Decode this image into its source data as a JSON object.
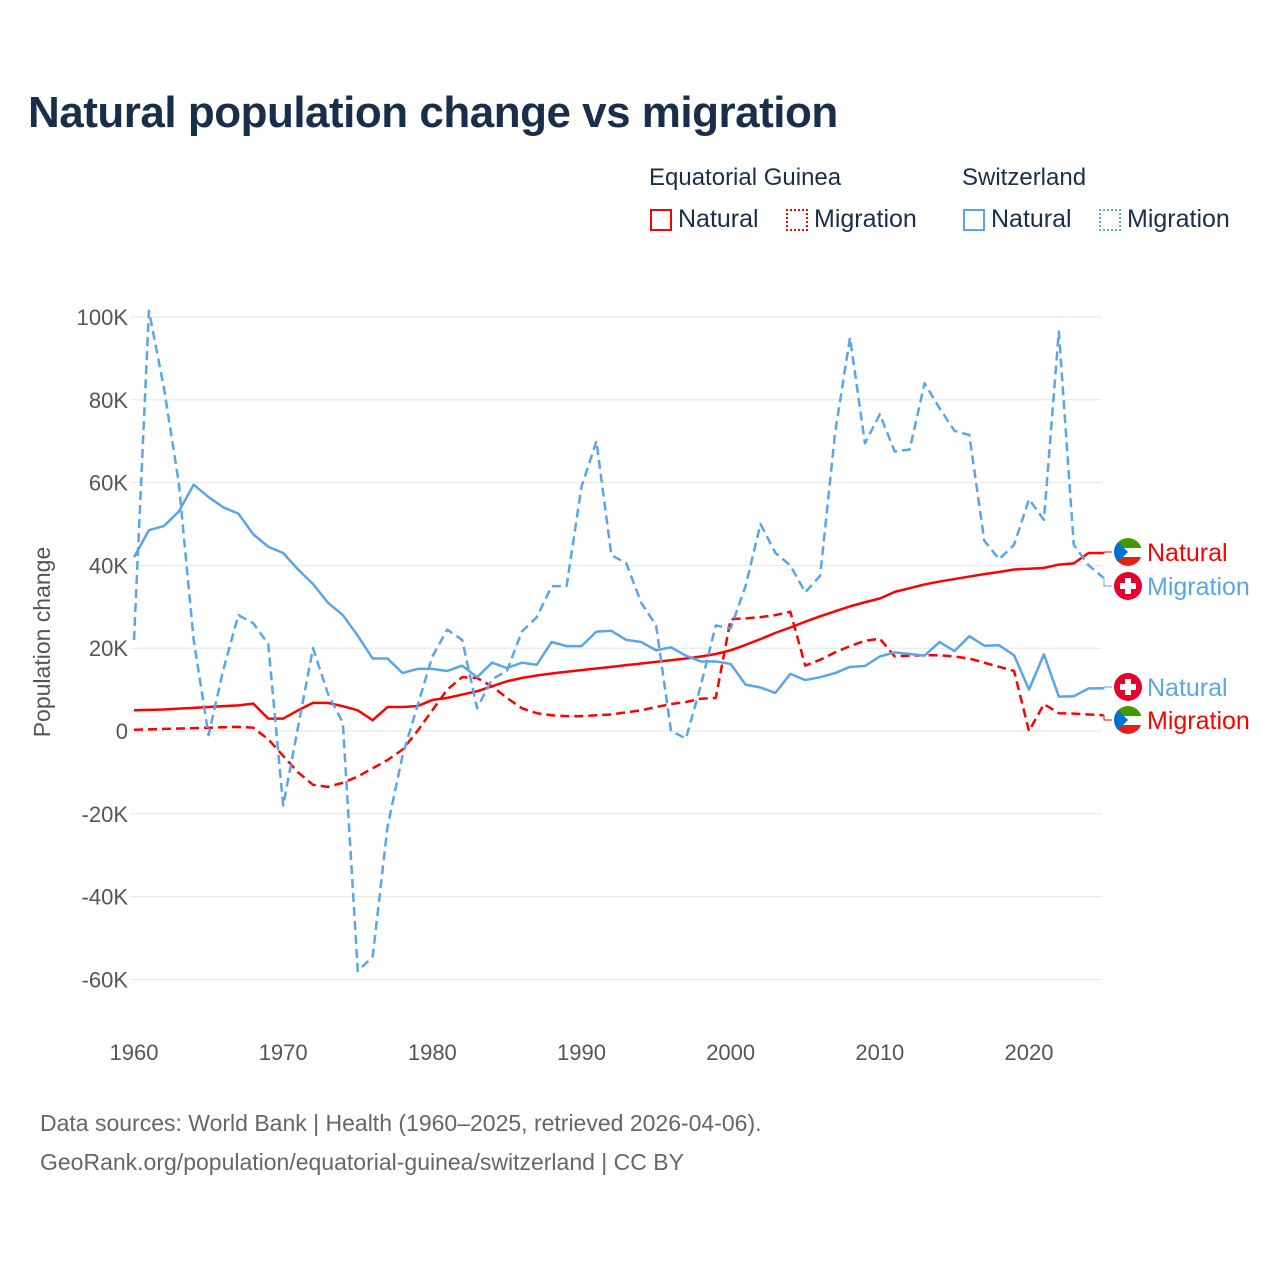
{
  "title": "Natural population change vs migration",
  "legend": {
    "groups": [
      {
        "country": "Equatorial Guinea",
        "color": "#ff0000",
        "items": [
          "Natural",
          "Migration"
        ]
      },
      {
        "country": "Switzerland",
        "color": "#5aa5ea",
        "items": [
          "Natural",
          "Migration"
        ]
      }
    ]
  },
  "footer": {
    "line1": "Data sources: World Bank | Health (1960–2025, retrieved 2026-04-06).",
    "line2": "GeoRank.org/population/equatorial-guinea/switzerland | CC BY"
  },
  "chart_data": {
    "type": "line",
    "title": "Natural population change vs migration",
    "xlabel": "",
    "ylabel": "Population change",
    "xlim": [
      1960,
      2025
    ],
    "ylim": [
      -70000,
      100000
    ],
    "x_ticks": [
      "1960",
      "1970",
      "1980",
      "1990",
      "2000",
      "2010",
      "2020"
    ],
    "y_ticks": [
      {
        "v": 100000,
        "l": "100K"
      },
      {
        "v": 80000,
        "l": "80K"
      },
      {
        "v": 60000,
        "l": "60K"
      },
      {
        "v": 40000,
        "l": "40K"
      },
      {
        "v": 20000,
        "l": "20K"
      },
      {
        "v": 0,
        "l": "0"
      },
      {
        "v": -20000,
        "l": "-20K"
      },
      {
        "v": -40000,
        "l": "-40K"
      },
      {
        "v": -60000,
        "l": "-60K"
      }
    ],
    "grid": true,
    "series": [
      {
        "name": "Equatorial Guinea Natural",
        "label": "Natural",
        "color": "#ff0000",
        "dash": "solid",
        "start": 1960,
        "values": [
          5000,
          5100,
          5200,
          5400,
          5600,
          5800,
          6000,
          6200,
          6600,
          3000,
          3000,
          5000,
          6800,
          6800,
          6000,
          5000,
          2600,
          5800,
          5800,
          6000,
          7500,
          8000,
          8800,
          9600,
          10800,
          12000,
          12800,
          13400,
          13900,
          14300,
          14700,
          15100,
          15500,
          15900,
          16300,
          16700,
          17100,
          17500,
          18000,
          18600,
          19500,
          20800,
          22200,
          23700,
          25000,
          26400,
          27700,
          28900,
          30100,
          31100,
          32000,
          33600,
          34500,
          35400,
          36100,
          36700,
          37300,
          37900,
          38400,
          39000,
          39200,
          39400,
          40200,
          40500,
          43000,
          43000
        ]
      },
      {
        "name": "Equatorial Guinea Migration",
        "label": "Migration",
        "color": "#ff0000",
        "dash": "dashed",
        "start": 1960,
        "values": [
          300,
          400,
          500,
          600,
          700,
          800,
          900,
          1000,
          800,
          -2000,
          -6000,
          -10000,
          -13000,
          -13500,
          -12500,
          -11000,
          -9000,
          -7000,
          -4500,
          0,
          5000,
          10000,
          13000,
          12800,
          10800,
          8000,
          5500,
          4300,
          3800,
          3600,
          3600,
          3800,
          4000,
          4500,
          5000,
          5800,
          6500,
          7000,
          7800,
          8000,
          27000,
          27200,
          27500,
          28000,
          28800,
          15800,
          17200,
          19000,
          20500,
          21800,
          22300,
          18000,
          18200,
          18300,
          18300,
          18000,
          17500,
          16500,
          15500,
          14500,
          0,
          6500,
          4300,
          4200,
          4000,
          3800
        ]
      },
      {
        "name": "Switzerland Natural",
        "label": "Natural",
        "color": "#5aa5ea",
        "dash": "solid",
        "start": 1960,
        "values": [
          42000,
          48500,
          49500,
          53000,
          59500,
          56500,
          54000,
          52500,
          47500,
          44500,
          43000,
          39000,
          35500,
          31000,
          28000,
          23000,
          17500,
          17500,
          14000,
          15000,
          15000,
          14500,
          15800,
          13000,
          16500,
          15200,
          16500,
          16000,
          21500,
          20500,
          20500,
          24000,
          24200,
          22000,
          21500,
          19500,
          20200,
          18200,
          16800,
          16800,
          16200,
          11200,
          10500,
          9200,
          13800,
          12300,
          13000,
          14000,
          15500,
          15700,
          18000,
          19000,
          18600,
          18200,
          21500,
          19300,
          22900,
          20600,
          20700,
          18300,
          10000,
          18500,
          8300,
          8400,
          10300,
          10300
        ]
      },
      {
        "name": "Switzerland Migration",
        "label": "Migration",
        "color": "#5aa5ea",
        "dash": "dashed",
        "start": 1960,
        "values": [
          22000,
          101500,
          83000,
          60000,
          22000,
          -1000,
          15000,
          28000,
          26000,
          21000,
          -18000,
          1000,
          20000,
          9000,
          2000,
          -58000,
          -54500,
          -23000,
          -6000,
          6000,
          18000,
          24500,
          22000,
          5500,
          12500,
          14500,
          24000,
          27500,
          35000,
          35000,
          59000,
          70000,
          42500,
          40500,
          31000,
          25500,
          0,
          -1800,
          11000,
          25500,
          24800,
          35000,
          50000,
          43000,
          40000,
          33500,
          37500,
          72000,
          95000,
          69500,
          76500,
          67500,
          68000,
          84000,
          78000,
          72500,
          71500,
          46000,
          41500,
          45000,
          56000,
          51000,
          96500,
          45000,
          40000,
          37000
        ]
      }
    ]
  }
}
